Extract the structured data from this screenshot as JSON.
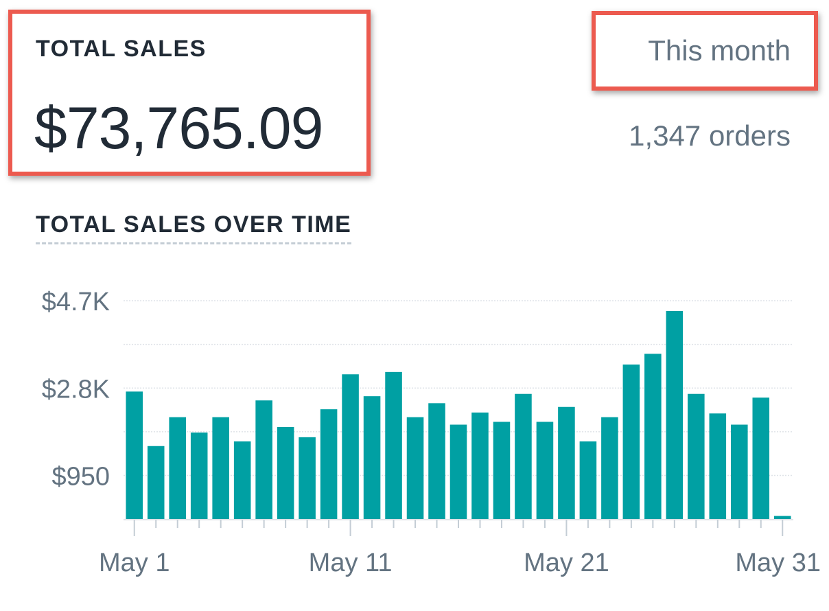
{
  "summary": {
    "total_label": "TOTAL SALES",
    "total_value": "$73,765.09",
    "period": "This month",
    "orders": "1,347 orders"
  },
  "colors": {
    "bar": "#00a0a3",
    "callout": "#ec5a4f",
    "muted_text": "#637381"
  },
  "chart_data": {
    "type": "bar",
    "title": "TOTAL SALES OVER TIME",
    "x": [
      "May 1",
      "May 2",
      "May 3",
      "May 4",
      "May 5",
      "May 6",
      "May 7",
      "May 8",
      "May 9",
      "May 10",
      "May 11",
      "May 12",
      "May 13",
      "May 14",
      "May 15",
      "May 16",
      "May 17",
      "May 18",
      "May 19",
      "May 20",
      "May 21",
      "May 22",
      "May 23",
      "May 24",
      "May 25",
      "May 26",
      "May 27",
      "May 28",
      "May 29",
      "May 30",
      "May 31"
    ],
    "values": [
      2750,
      1580,
      2200,
      1870,
      2200,
      1680,
      2560,
      1990,
      1770,
      2370,
      3120,
      2650,
      3170,
      2200,
      2500,
      2040,
      2300,
      2100,
      2700,
      2100,
      2420,
      1680,
      2200,
      3330,
      3560,
      4480,
      2700,
      2280,
      2040,
      2620,
      80
    ],
    "y_ticks": [
      {
        "value": 950,
        "label": "$950"
      },
      {
        "value": 2825,
        "label": "$2.8K"
      },
      {
        "value": 4700,
        "label": "$4.7K"
      }
    ],
    "x_tick_labels": [
      {
        "index": 0,
        "label": "May 1"
      },
      {
        "index": 10,
        "label": "May 11"
      },
      {
        "index": 20,
        "label": "May 21"
      },
      {
        "index": 30,
        "label": "May 31"
      }
    ],
    "ylim": [
      0,
      4700
    ],
    "grid": true,
    "xlabel": "",
    "ylabel": ""
  }
}
